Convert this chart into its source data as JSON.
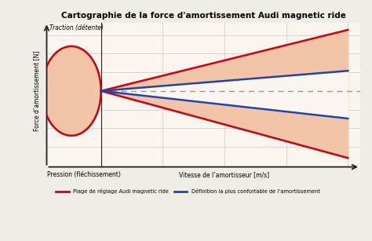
{
  "title": "Cartographie de la force d'amortissement Audi magnetic ride",
  "ylabel": "Force d’amortissement [N]",
  "xlabel_center": "Vitesse de l’amortisseur [m/s]",
  "xlabel_left": "Pression (fléchissement)",
  "ylabel_top": "Traction (détente)",
  "legend_red": "Plage de réglage Audi magnetic ride",
  "legend_blue": "Définition la plus confortable de l’amortissement",
  "background_color": "#f0ece6",
  "plot_bg": "#faf5ee",
  "fill_color": "#f2c4a8",
  "red_color": "#cc0011",
  "blue_color": "#2244aa",
  "dashed_color": "#999999",
  "grid_color": "#d8d0c8",
  "axis_color": "#222222"
}
